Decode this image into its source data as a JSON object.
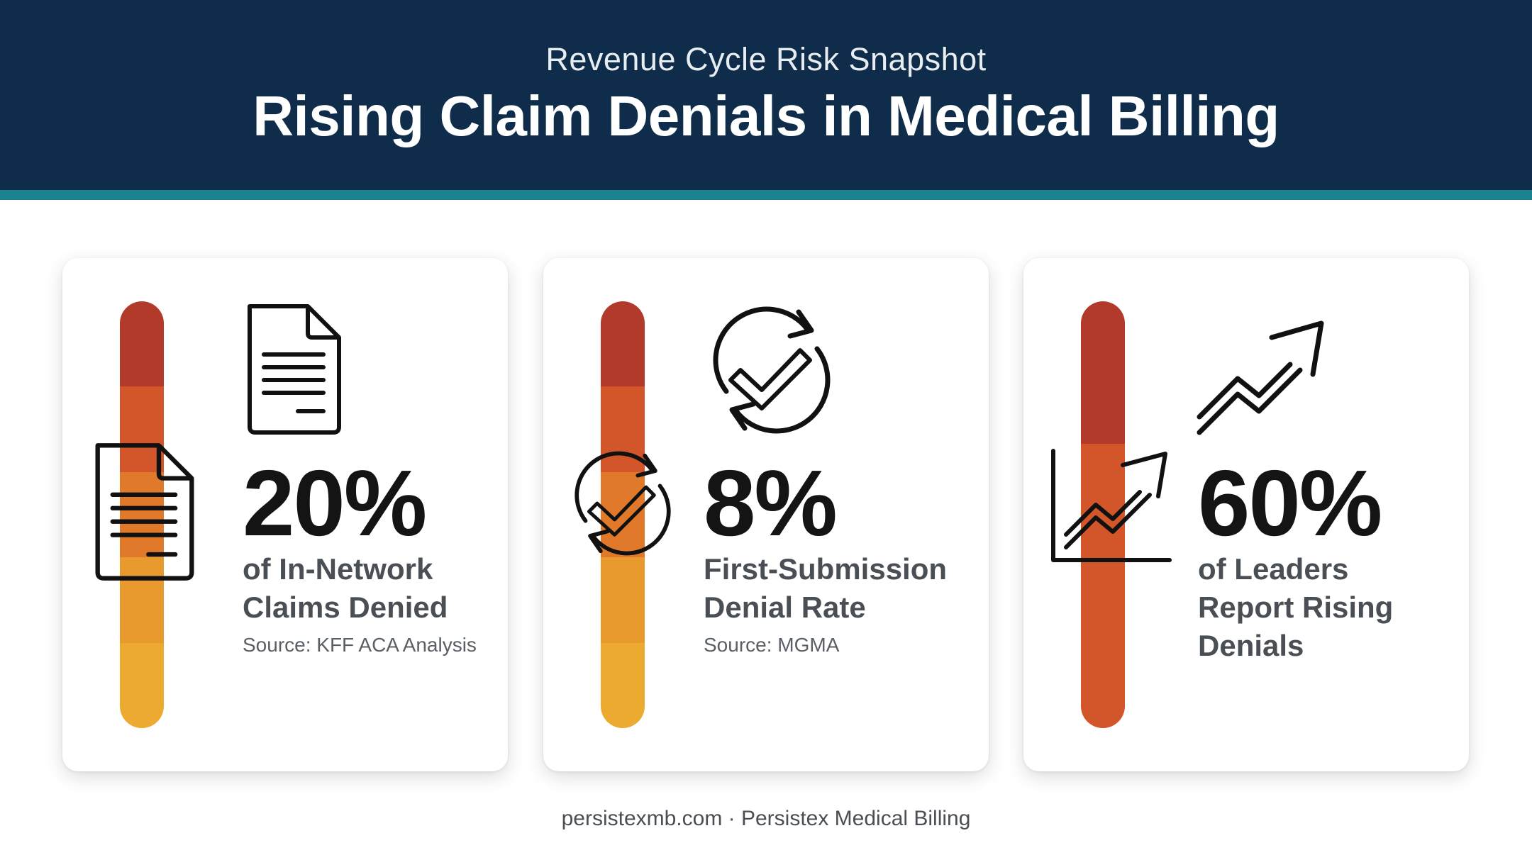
{
  "header": {
    "subtitle": "Revenue Cycle Risk Snapshot",
    "title": "Rising Claim Denials in Medical Billing"
  },
  "cards": [
    {
      "stat": "20%",
      "caption": "of In-Network Claims Denied",
      "source": "Source: KFF ACA Analysis",
      "icon": "document-icon",
      "level": 1.0
    },
    {
      "stat": "8%",
      "caption": "First-Submission Denial Rate",
      "source": "Source: MGMA",
      "icon": "refresh-check-icon",
      "level": 1.0
    },
    {
      "stat": "60%",
      "caption": "of Leaders Report Rising Denials",
      "source": "",
      "icon": "trend-up-icon",
      "level": 1.0
    }
  ],
  "colors": {
    "header_bg": "#0f2d4a",
    "accent": "#1d8290",
    "bar_gradient": [
      "#b23a2b",
      "#d2562a",
      "#e07a2a",
      "#e89a2e",
      "#ecaa30"
    ]
  },
  "footer": "persistexmb.com · Persistex Medical Billing"
}
